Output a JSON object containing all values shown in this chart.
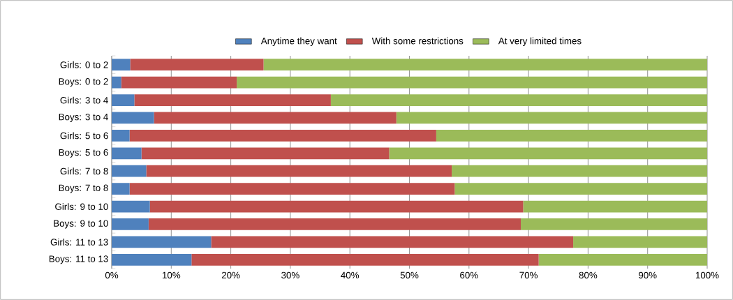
{
  "chart_data": {
    "type": "bar",
    "orientation": "horizontal",
    "stacked": true,
    "categories": [
      "Girls: 0 to 2",
      "Boys: 0 to 2",
      "Girls: 3 to 4",
      "Boys: 3 to 4",
      "Girls: 5 to 6",
      "Boys: 5 to 6",
      "Girls: 7 to 8",
      "Boys: 7 to 8",
      "Girls: 9 to 10",
      "Boys: 9 to 10",
      "Girls: 11 to 13",
      "Boys: 11 to 13"
    ],
    "series": [
      {
        "name": "Anytime they want",
        "color": "#4f81bd",
        "values": [
          3.1,
          1.6,
          3.8,
          7.1,
          3.0,
          5.0,
          5.8,
          3.0,
          6.4,
          6.2,
          16.7,
          13.4
        ]
      },
      {
        "name": "With some restrictions",
        "color": "#c0504d",
        "values": [
          22.4,
          19.4,
          33.0,
          40.7,
          51.5,
          41.6,
          51.3,
          54.6,
          62.7,
          62.5,
          60.8,
          58.3
        ]
      },
      {
        "name": "At very limited times",
        "color": "#9bbb59",
        "values": [
          74.5,
          79.0,
          63.2,
          52.2,
          45.5,
          53.4,
          42.9,
          42.4,
          30.9,
          31.3,
          22.5,
          28.3
        ]
      }
    ],
    "xlim": [
      0,
      100
    ],
    "xticks": [
      {
        "value": 0,
        "label": "0%"
      },
      {
        "value": 10,
        "label": "10%"
      },
      {
        "value": 20,
        "label": "20%"
      },
      {
        "value": 30,
        "label": "30%"
      },
      {
        "value": 40,
        "label": "40%"
      },
      {
        "value": 50,
        "label": "50%"
      },
      {
        "value": 60,
        "label": "60%"
      },
      {
        "value": 70,
        "label": "70%"
      },
      {
        "value": 80,
        "label": "80%"
      },
      {
        "value": 90,
        "label": "90%"
      },
      {
        "value": 100,
        "label": "100%"
      }
    ],
    "grid": "x",
    "legend": "top"
  }
}
